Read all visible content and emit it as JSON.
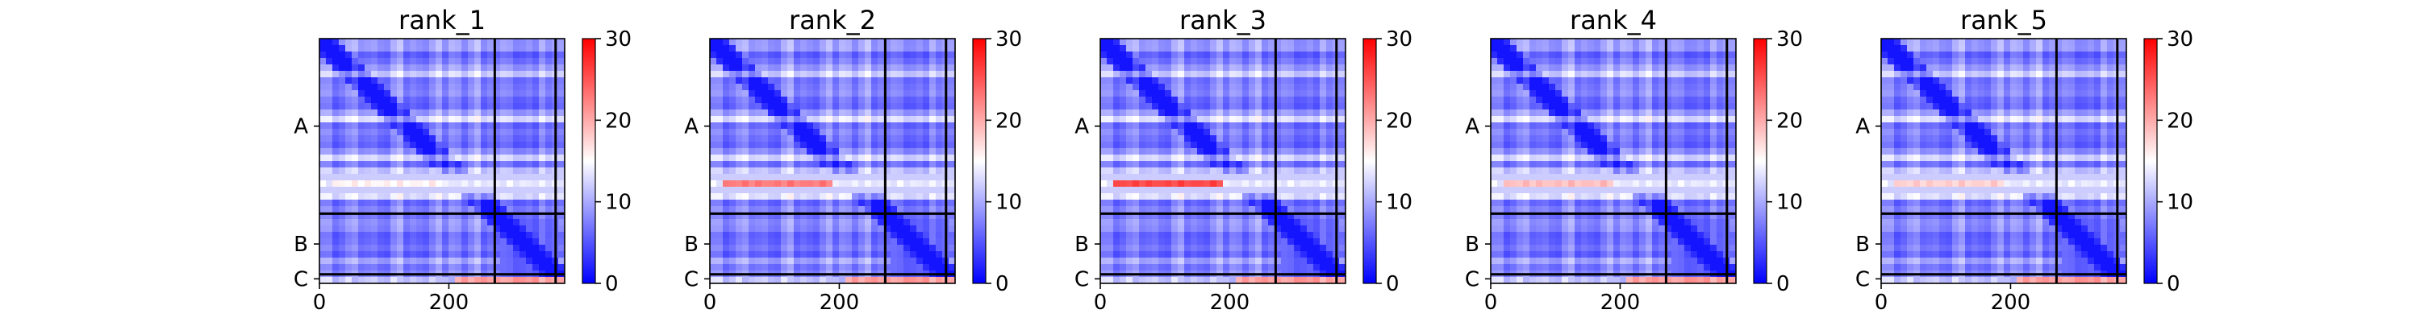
{
  "chart_data": [
    {
      "type": "heatmap",
      "title": "rank_1",
      "xlim": [
        0,
        379
      ],
      "x_ticks": [
        0,
        200
      ],
      "y_chain_labels": [
        "A",
        "B",
        "C"
      ],
      "chain_boundaries": [
        271,
        365
      ],
      "colorbar": {
        "vmin": 0,
        "vmax": 30,
        "ticks": [
          0,
          10,
          20,
          30
        ],
        "colormap": "bwr"
      },
      "hot_row_max_value": 17,
      "bottom_row_max_value": 22
    },
    {
      "type": "heatmap",
      "title": "rank_2",
      "xlim": [
        0,
        379
      ],
      "x_ticks": [
        0,
        200
      ],
      "y_chain_labels": [
        "A",
        "B",
        "C"
      ],
      "chain_boundaries": [
        271,
        365
      ],
      "colorbar": {
        "vmin": 0,
        "vmax": 30,
        "ticks": [
          0,
          10,
          20,
          30
        ],
        "colormap": "bwr"
      },
      "hot_row_max_value": 24,
      "bottom_row_max_value": 22
    },
    {
      "type": "heatmap",
      "title": "rank_3",
      "xlim": [
        0,
        379
      ],
      "x_ticks": [
        0,
        200
      ],
      "y_chain_labels": [
        "A",
        "B",
        "C"
      ],
      "chain_boundaries": [
        271,
        365
      ],
      "colorbar": {
        "vmin": 0,
        "vmax": 30,
        "ticks": [
          0,
          10,
          20,
          30
        ],
        "colormap": "bwr"
      },
      "hot_row_max_value": 27,
      "bottom_row_max_value": 22
    },
    {
      "type": "heatmap",
      "title": "rank_4",
      "xlim": [
        0,
        379
      ],
      "x_ticks": [
        0,
        200
      ],
      "y_chain_labels": [
        "A",
        "B",
        "C"
      ],
      "chain_boundaries": [
        271,
        365
      ],
      "colorbar": {
        "vmin": 0,
        "vmax": 30,
        "ticks": [
          0,
          10,
          20,
          30
        ],
        "colormap": "bwr"
      },
      "hot_row_max_value": 20,
      "bottom_row_max_value": 22
    },
    {
      "type": "heatmap",
      "title": "rank_5",
      "xlim": [
        0,
        379
      ],
      "x_ticks": [
        0,
        200
      ],
      "y_chain_labels": [
        "A",
        "B",
        "C"
      ],
      "chain_boundaries": [
        271,
        365
      ],
      "colorbar": {
        "vmin": 0,
        "vmax": 30,
        "ticks": [
          0,
          10,
          20,
          30
        ],
        "colormap": "bwr"
      },
      "hot_row_max_value": 19,
      "bottom_row_max_value": 22
    }
  ]
}
